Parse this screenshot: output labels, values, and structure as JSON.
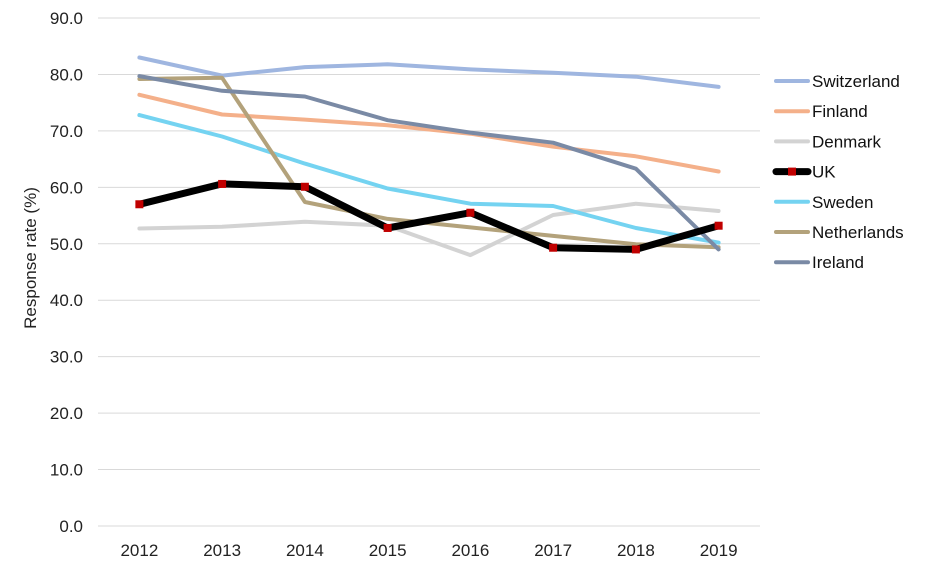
{
  "chart_data": {
    "type": "line",
    "title": "",
    "xlabel": "",
    "ylabel": "Response rate (%)",
    "categories": [
      "2012",
      "2013",
      "2014",
      "2015",
      "2016",
      "2017",
      "2018",
      "2019"
    ],
    "yticks": [
      "0.0",
      "10.0",
      "20.0",
      "30.0",
      "40.0",
      "50.0",
      "60.0",
      "70.0",
      "80.0",
      "90.0"
    ],
    "ylim": [
      0,
      90
    ],
    "grid": "horizontal",
    "legend_position": "right",
    "series": [
      {
        "name": "Switzerland",
        "color": "#9fb6e0",
        "values": [
          83.0,
          79.8,
          81.3,
          81.8,
          80.9,
          80.3,
          79.6,
          77.8
        ]
      },
      {
        "name": "Finland",
        "color": "#f4b08a",
        "values": [
          76.4,
          72.9,
          72.0,
          71.0,
          69.5,
          67.2,
          65.5,
          62.8
        ]
      },
      {
        "name": "Denmark",
        "color": "#d3d3d3",
        "values": [
          52.7,
          53.0,
          53.9,
          53.2,
          48.0,
          55.1,
          57.1,
          55.8
        ]
      },
      {
        "name": "UK",
        "color": "#000000",
        "marker_color": "#c00000",
        "values": [
          57.0,
          60.6,
          60.1,
          52.8,
          55.5,
          49.3,
          49.0,
          53.2
        ]
      },
      {
        "name": "Sweden",
        "color": "#74d3f1",
        "values": [
          72.8,
          69.0,
          64.2,
          59.8,
          57.1,
          56.7,
          52.8,
          50.2
        ]
      },
      {
        "name": "Netherlands",
        "color": "#b3a27b",
        "values": [
          79.2,
          79.4,
          57.4,
          54.4,
          52.9,
          51.4,
          49.9,
          49.4
        ]
      },
      {
        "name": "Ireland",
        "color": "#7a8aa5",
        "values": [
          79.7,
          77.1,
          76.1,
          71.9,
          69.7,
          67.9,
          63.3,
          49.0
        ]
      }
    ]
  }
}
